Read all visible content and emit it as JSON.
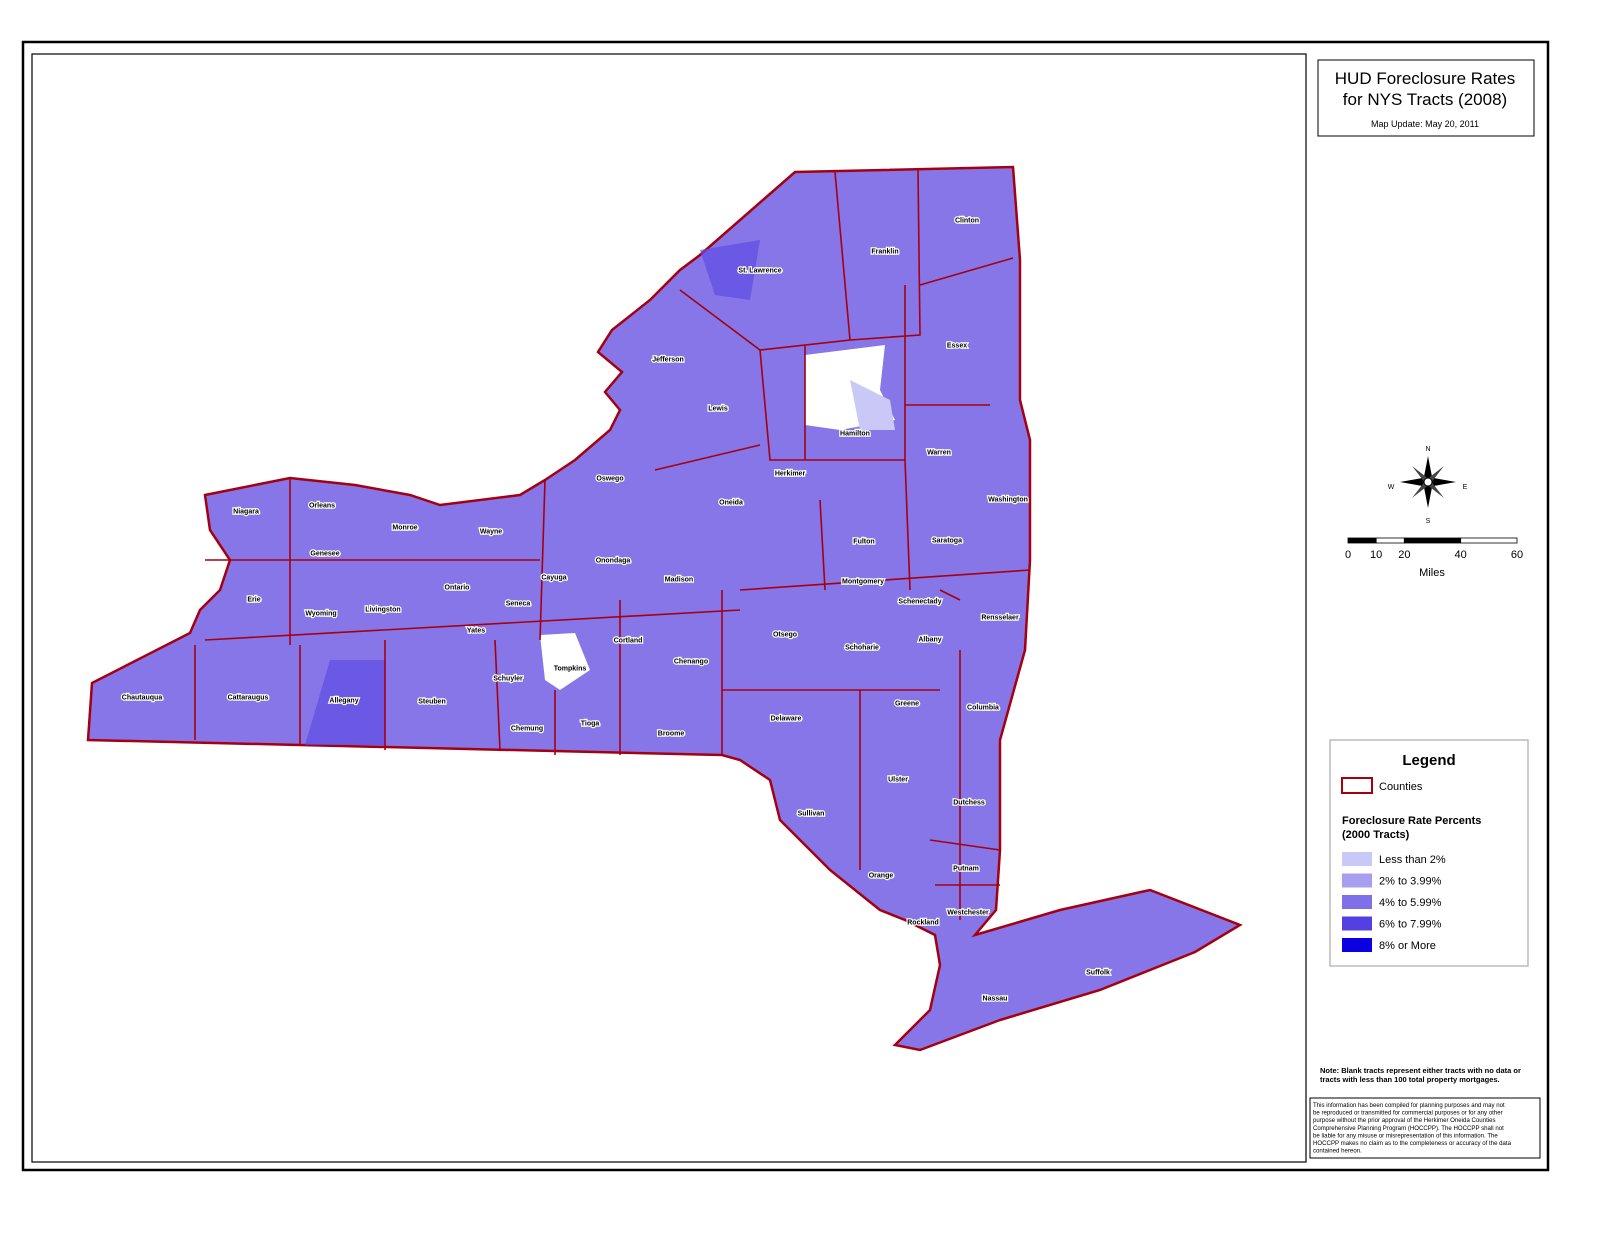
{
  "header": {
    "title_lines": [
      "HUD Foreclosure Rates",
      "for NYS Tracts (2008)"
    ],
    "map_update": "Map Update:  May 20, 2011"
  },
  "counties": [
    "St. Lawrence",
    "Franklin",
    "Clinton",
    "Jefferson",
    "Essex",
    "Lewis",
    "Hamilton",
    "Warren",
    "Herkimer",
    "Oswego",
    "Oneida",
    "Washington",
    "Niagara",
    "Orleans",
    "Monroe",
    "Wayne",
    "Fulton",
    "Saratoga",
    "Genesee",
    "Onondaga",
    "Cayuga",
    "Madison",
    "Montgomery",
    "Ontario",
    "Schenectady",
    "Erie",
    "Wyoming",
    "Livingston",
    "Seneca",
    "Rensselaer",
    "Yates",
    "Cortland",
    "Albany",
    "Otsego",
    "Schoharie",
    "Chenango",
    "Tompkins",
    "Schuyler",
    "Chautauqua",
    "Cattaraugus",
    "Allegany",
    "Steuben",
    "Greene",
    "Columbia",
    "Tioga",
    "Delaware",
    "Chemung",
    "Broome",
    "Ulster",
    "Dutchess",
    "Sullivan",
    "Orange",
    "Putnam",
    "Westchester",
    "Rockland",
    "Suffolk",
    "Nassau"
  ],
  "compass": {
    "n": "N",
    "s": "S",
    "e": "E",
    "w": "W"
  },
  "scale_bar": {
    "ticks": [
      0,
      10,
      20,
      40,
      60
    ],
    "unit": "Miles"
  },
  "legend": {
    "title": "Legend",
    "counties_label": "Counties",
    "section_title_lines": [
      "Foreclosure Rate Percents",
      "(2000 Tracts)"
    ],
    "items": [
      {
        "label": "Less than 2%",
        "color": "#c9c8f6"
      },
      {
        "label": "2% to 3.99%",
        "color": "#a79ef0"
      },
      {
        "label": "4% to 5.99%",
        "color": "#7f6fe8"
      },
      {
        "label": "6% to 7.99%",
        "color": "#5440e2"
      },
      {
        "label": "8% or More",
        "color": "#0a00e0"
      }
    ],
    "county_color": "#a50010"
  },
  "note_lines": [
    "Note:  Blank tracts represent either tracts with no data or",
    "tracts with less than 100 total property mortgages."
  ],
  "disclaimer_lines": [
    "This information has been compiled for planning purposes and may not",
    "be reproduced or transmitted for commercial purposes or for any other",
    "purpose without the prior approval of the Herkimer Oneida Counties",
    "Comprehensive Planning Program (HOCCPP).  The HOCCPP shall not",
    "be liable for any misuse or misrepresentation of this information.  The",
    "HOCCPP makes no claim as to the completeness or accuracy of the data",
    "contained hereon."
  ]
}
